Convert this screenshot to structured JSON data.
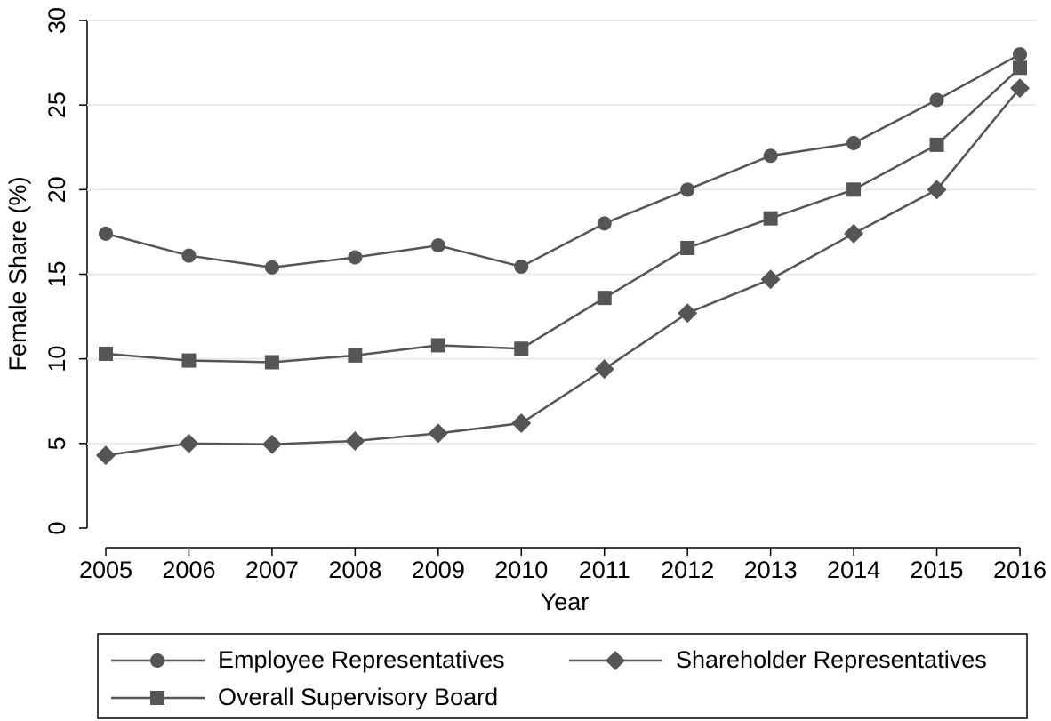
{
  "chart_data": {
    "type": "line",
    "x_label": "Year",
    "y_label": "Female Share (%)",
    "x": [
      2005,
      2006,
      2007,
      2008,
      2009,
      2010,
      2011,
      2012,
      2013,
      2014,
      2015,
      2016
    ],
    "series": [
      {
        "name": "Employee Representatives",
        "color": "#555555",
        "marker": "circle",
        "values": [
          17.4,
          16.1,
          15.4,
          16.0,
          16.7,
          15.45,
          18.0,
          20.0,
          22.0,
          22.75,
          25.3,
          28.0
        ]
      },
      {
        "name": "Shareholder Representatives",
        "color": "#555555",
        "marker": "diamond",
        "values": [
          4.3,
          5.0,
          4.95,
          5.15,
          5.6,
          6.2,
          9.4,
          12.7,
          14.7,
          17.4,
          20.0,
          26.0
        ]
      },
      {
        "name": "Overall Supervisory Board",
        "color": "#555555",
        "marker": "square",
        "values": [
          10.3,
          9.9,
          9.8,
          10.2,
          10.8,
          10.6,
          13.6,
          16.55,
          18.3,
          20.0,
          22.65,
          27.2
        ]
      }
    ],
    "xlim": [
      2005,
      2016
    ],
    "xticks": [
      2005,
      2006,
      2007,
      2008,
      2009,
      2010,
      2011,
      2012,
      2013,
      2014,
      2015,
      2016
    ],
    "ylim": [
      0,
      30
    ],
    "yticks": [
      0,
      5,
      10,
      15,
      20,
      25,
      30
    ],
    "grid": true,
    "grid_color": "#e1ecec",
    "legend": "bottom"
  }
}
